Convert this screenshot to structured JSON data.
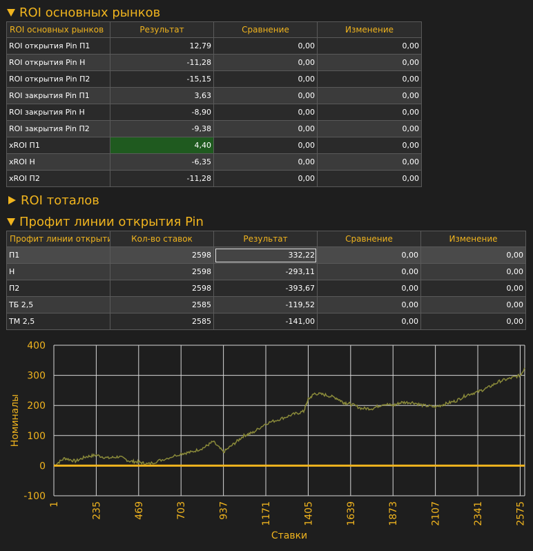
{
  "colors": {
    "accent": "#f0b41e",
    "positive_cell": "#1f5a1f",
    "line": "#8a8a3a",
    "zero_line": "#f0b41e"
  },
  "sections": {
    "roi_markets": {
      "title": "ROI основных рынков",
      "expanded": true
    },
    "roi_totals": {
      "title": "ROI тоталов",
      "expanded": false
    },
    "profit_open": {
      "title": "Профит линии открытия Pin",
      "expanded": true
    }
  },
  "roi_table": {
    "headers": [
      "ROI основных рынков",
      "Результат",
      "Сравнение",
      "Изменение"
    ],
    "rows": [
      {
        "name": "ROI открытия Pin П1",
        "result": "12,79",
        "compare": "0,00",
        "change": "0,00"
      },
      {
        "name": "ROI открытия Pin Н",
        "result": "-11,28",
        "compare": "0,00",
        "change": "0,00"
      },
      {
        "name": "ROI открытия Pin П2",
        "result": "-15,15",
        "compare": "0,00",
        "change": "0,00"
      },
      {
        "name": "ROI закрытия Pin П1",
        "result": "3,63",
        "compare": "0,00",
        "change": "0,00"
      },
      {
        "name": "ROI закрытия Pin Н",
        "result": "-8,90",
        "compare": "0,00",
        "change": "0,00"
      },
      {
        "name": "ROI закрытия Pin П2",
        "result": "-9,38",
        "compare": "0,00",
        "change": "0,00"
      },
      {
        "name": "xROI П1",
        "result": "4,40",
        "compare": "0,00",
        "change": "0,00"
      },
      {
        "name": "xROI Н",
        "result": "-6,35",
        "compare": "0,00",
        "change": "0,00"
      },
      {
        "name": "xROI П2",
        "result": "-11,28",
        "compare": "0,00",
        "change": "0,00"
      }
    ]
  },
  "profit_table": {
    "headers": [
      "Профит линии открытия Pin",
      "Кол-во ставок",
      "Результат",
      "Сравнение",
      "Изменение"
    ],
    "rows": [
      {
        "name": "П1",
        "bets": "2598",
        "result": "332,22",
        "compare": "0,00",
        "change": "0,00"
      },
      {
        "name": "Н",
        "bets": "2598",
        "result": "-293,11",
        "compare": "0,00",
        "change": "0,00"
      },
      {
        "name": "П2",
        "bets": "2598",
        "result": "-393,67",
        "compare": "0,00",
        "change": "0,00"
      },
      {
        "name": "ТБ 2,5",
        "bets": "2585",
        "result": "-119,52",
        "compare": "0,00",
        "change": "0,00"
      },
      {
        "name": "ТМ 2,5",
        "bets": "2585",
        "result": "-141,00",
        "compare": "0,00",
        "change": "0,00"
      }
    ]
  },
  "chart_data": {
    "type": "line",
    "xlabel": "Ставки",
    "ylabel": "Номиналы",
    "xlim": [
      1,
      2600
    ],
    "ylim": [
      -100,
      400
    ],
    "x_ticks": [
      "1",
      "235",
      "469",
      "703",
      "937",
      "1171",
      "1405",
      "1639",
      "1873",
      "2107",
      "2341",
      "2575"
    ],
    "y_ticks": [
      "400",
      "300",
      "200",
      "100",
      "0",
      "-100"
    ],
    "grid": true,
    "series": [
      {
        "x": [
          1,
          60,
          120,
          180,
          235,
          300,
          360,
          420,
          469,
          520,
          600,
          703,
          760,
          830,
          880,
          937,
          1000,
          1050,
          1100,
          1171,
          1250,
          1320,
          1380,
          1405,
          1440,
          1500,
          1560,
          1600,
          1639,
          1700,
          1760,
          1820,
          1873,
          1920,
          1980,
          2040,
          2107,
          2160,
          2220,
          2280,
          2341,
          2400,
          2460,
          2520,
          2575,
          2600
        ],
        "y": [
          0,
          25,
          15,
          30,
          35,
          25,
          30,
          15,
          12,
          5,
          20,
          40,
          45,
          60,
          80,
          45,
          75,
          100,
          110,
          140,
          155,
          170,
          180,
          220,
          240,
          235,
          225,
          210,
          205,
          190,
          190,
          205,
          200,
          210,
          210,
          200,
          195,
          205,
          215,
          235,
          245,
          260,
          280,
          290,
          300,
          325
        ]
      }
    ]
  }
}
